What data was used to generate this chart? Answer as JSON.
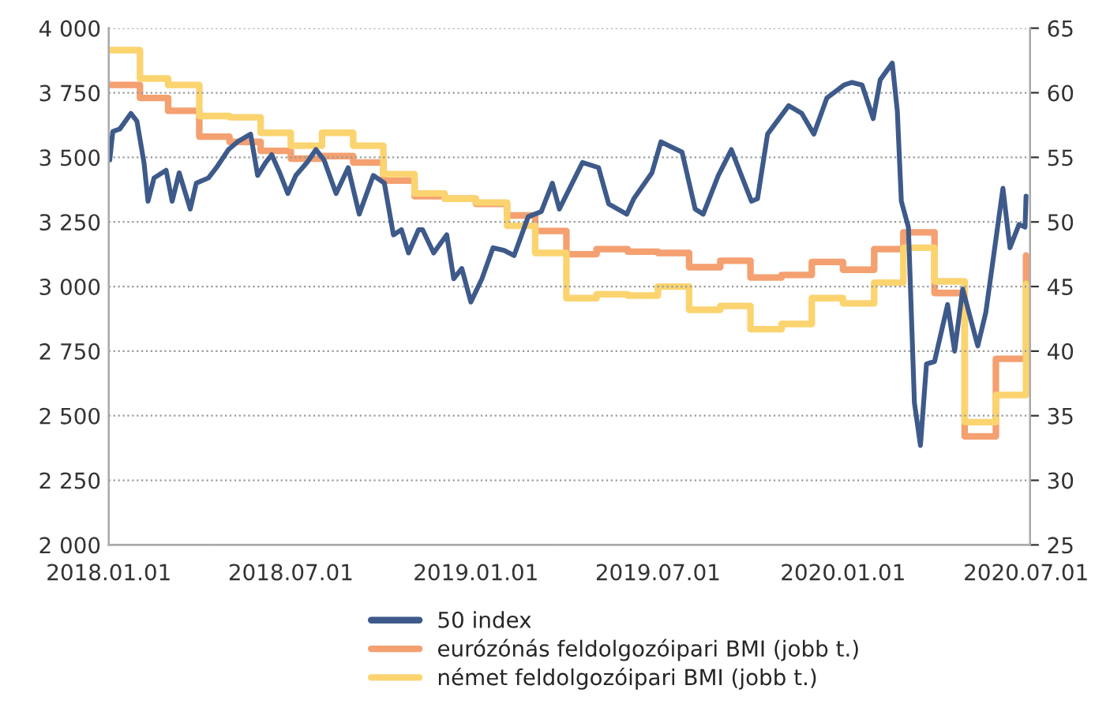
{
  "chart_data": {
    "type": "line",
    "xlim": [
      "2018-01-01",
      "2020-07-05"
    ],
    "xticks": [
      {
        "value": "2018-01-01",
        "label": "2018.01.01"
      },
      {
        "value": "2018-07-01",
        "label": "2018.07.01"
      },
      {
        "value": "2019-01-01",
        "label": "2019.01.01"
      },
      {
        "value": "2019-07-01",
        "label": "2019.07.01"
      },
      {
        "value": "2020-01-01",
        "label": "2020.01.01"
      },
      {
        "value": "2020-07-01",
        "label": "2020.07.01"
      }
    ],
    "ylim": [
      2000,
      4000
    ],
    "yticks": [
      {
        "value": 2000,
        "label": "2 000"
      },
      {
        "value": 2250,
        "label": "2 250"
      },
      {
        "value": 2500,
        "label": "2 500"
      },
      {
        "value": 2750,
        "label": "2 750"
      },
      {
        "value": 3000,
        "label": "3 000"
      },
      {
        "value": 3250,
        "label": "3 250"
      },
      {
        "value": 3500,
        "label": "3 500"
      },
      {
        "value": 3750,
        "label": "3 750"
      },
      {
        "value": 4000,
        "label": "4 000"
      }
    ],
    "y2lim": [
      25,
      65
    ],
    "y2ticks": [
      25,
      30,
      35,
      40,
      45,
      50,
      55,
      60,
      65
    ],
    "grid": "y",
    "legend": "bottom",
    "line_style": "solid",
    "series": [
      {
        "name": "50 index",
        "color": "#3d5a8a",
        "x": [
          "2018-01-02",
          "2018-01-05",
          "2018-01-12",
          "2018-01-23",
          "2018-01-29",
          "2018-02-05",
          "2018-02-09",
          "2018-02-15",
          "2018-02-27",
          "2018-03-05",
          "2018-03-12",
          "2018-03-23",
          "2018-03-29",
          "2018-04-10",
          "2018-04-18",
          "2018-04-30",
          "2018-05-09",
          "2018-05-22",
          "2018-05-29",
          "2018-06-06",
          "2018-06-12",
          "2018-06-20",
          "2018-06-28",
          "2018-07-06",
          "2018-07-17",
          "2018-07-26",
          "2018-08-03",
          "2018-08-15",
          "2018-08-27",
          "2018-09-07",
          "2018-09-21",
          "2018-10-02",
          "2018-10-11",
          "2018-10-19",
          "2018-10-26",
          "2018-11-05",
          "2018-11-09",
          "2018-11-20",
          "2018-12-03",
          "2018-12-10",
          "2018-12-18",
          "2018-12-27",
          "2019-01-07",
          "2019-01-18",
          "2019-01-29",
          "2019-02-08",
          "2019-02-22",
          "2019-03-07",
          "2019-03-18",
          "2019-03-25",
          "2019-04-17",
          "2019-05-03",
          "2019-05-13",
          "2019-05-31",
          "2019-06-07",
          "2019-06-25",
          "2019-07-04",
          "2019-07-25",
          "2019-08-07",
          "2019-08-15",
          "2019-08-30",
          "2019-09-12",
          "2019-10-02",
          "2019-10-08",
          "2019-10-18",
          "2019-11-08",
          "2019-11-21",
          "2019-12-03",
          "2019-12-16",
          "2020-01-02",
          "2020-01-10",
          "2020-01-20",
          "2020-01-31",
          "2020-02-07",
          "2020-02-19",
          "2020-02-24",
          "2020-02-28",
          "2020-03-06",
          "2020-03-12",
          "2020-03-18",
          "2020-03-24",
          "2020-04-01",
          "2020-04-14",
          "2020-04-21",
          "2020-04-29",
          "2020-05-14",
          "2020-05-22",
          "2020-06-08",
          "2020-06-15",
          "2020-06-24",
          "2020-06-30",
          "2020-07-01"
        ],
        "values": [
          3490,
          3600,
          3610,
          3670,
          3640,
          3480,
          3330,
          3420,
          3450,
          3330,
          3440,
          3300,
          3400,
          3420,
          3460,
          3530,
          3560,
          3590,
          3430,
          3480,
          3510,
          3440,
          3360,
          3430,
          3480,
          3530,
          3490,
          3360,
          3460,
          3280,
          3430,
          3400,
          3200,
          3220,
          3130,
          3220,
          3220,
          3130,
          3200,
          3030,
          3070,
          2940,
          3030,
          3150,
          3140,
          3120,
          3270,
          3290,
          3400,
          3300,
          3480,
          3460,
          3320,
          3280,
          3340,
          3440,
          3560,
          3520,
          3300,
          3280,
          3430,
          3530,
          3330,
          3340,
          3590,
          3700,
          3670,
          3590,
          3730,
          3780,
          3790,
          3780,
          3650,
          3800,
          3865,
          3680,
          3330,
          3230,
          2550,
          2385,
          2700,
          2710,
          2930,
          2750,
          2990,
          2770,
          2900,
          3380,
          3150,
          3240,
          3230,
          3350
        ]
      },
      {
        "name": "eurózónás feldolgozóipari BMI (jobb t.)",
        "color": "#f4a070",
        "type": "step",
        "axis": "y2",
        "x": [
          "2018-01-01",
          "2018-02-01",
          "2018-03-01",
          "2018-04-01",
          "2018-05-01",
          "2018-06-01",
          "2018-07-01",
          "2018-08-01",
          "2018-09-01",
          "2018-10-01",
          "2018-11-01",
          "2018-12-01",
          "2019-01-01",
          "2019-02-01",
          "2019-03-01",
          "2019-04-01",
          "2019-05-01",
          "2019-06-01",
          "2019-07-01",
          "2019-08-01",
          "2019-09-01",
          "2019-10-01",
          "2019-11-01",
          "2019-12-01",
          "2020-01-01",
          "2020-02-01",
          "2020-03-01",
          "2020-04-01",
          "2020-05-01",
          "2020-06-01",
          "2020-07-01"
        ],
        "values": [
          60.6,
          59.6,
          58.6,
          56.6,
          56.2,
          55.5,
          54.9,
          55.1,
          54.6,
          53.2,
          52.0,
          51.8,
          51.4,
          50.5,
          49.3,
          47.5,
          47.9,
          47.7,
          47.6,
          46.5,
          47.0,
          45.7,
          45.9,
          46.9,
          46.3,
          47.9,
          49.2,
          44.5,
          33.4,
          39.4,
          47.4
        ]
      },
      {
        "name": "német feldolgozóipari BMI (jobb t.)",
        "color": "#fbd470",
        "type": "step",
        "axis": "y2",
        "x": [
          "2018-01-01",
          "2018-02-01",
          "2018-03-01",
          "2018-04-01",
          "2018-05-01",
          "2018-06-01",
          "2018-07-01",
          "2018-08-01",
          "2018-09-01",
          "2018-10-01",
          "2018-11-01",
          "2018-12-01",
          "2019-01-01",
          "2019-02-01",
          "2019-03-01",
          "2019-04-01",
          "2019-05-01",
          "2019-06-01",
          "2019-07-01",
          "2019-08-01",
          "2019-09-01",
          "2019-10-01",
          "2019-11-01",
          "2019-12-01",
          "2020-01-01",
          "2020-02-01",
          "2020-03-01",
          "2020-04-01",
          "2020-05-01",
          "2020-06-01",
          "2020-07-01"
        ],
        "values": [
          63.3,
          61.1,
          60.6,
          58.2,
          58.1,
          56.9,
          55.9,
          56.9,
          55.9,
          53.7,
          52.2,
          51.8,
          51.5,
          49.7,
          47.6,
          44.1,
          44.4,
          44.3,
          45.0,
          43.2,
          43.5,
          41.7,
          42.1,
          44.1,
          43.7,
          45.3,
          48.0,
          45.4,
          34.5,
          36.6,
          45.2
        ]
      }
    ]
  }
}
